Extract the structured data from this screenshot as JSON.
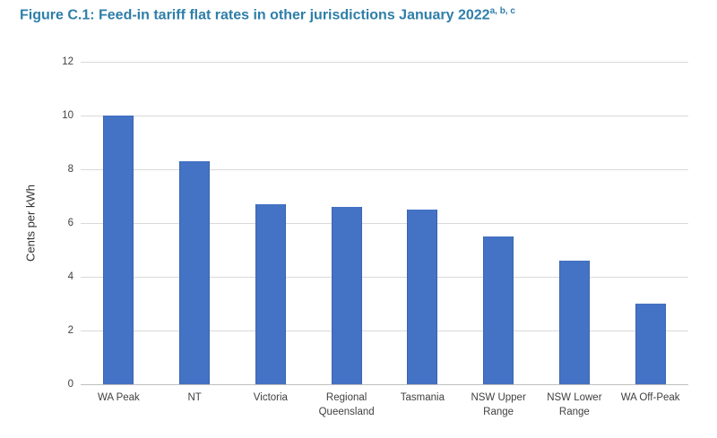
{
  "figure": {
    "title_text": "Figure C.1: Feed-in tariff flat rates in other jurisdictions January 2022",
    "title_superscript": "a, b, c"
  },
  "colors": {
    "title": "#2e7ea9",
    "bar_fill": "#4472c4",
    "bar_edge": "#3a64ae",
    "gridline": "#d9d9d9",
    "axis_line": "#bfbfbf",
    "tick_text": "#404040",
    "axis_title_text": "#333333",
    "background": "#ffffff"
  },
  "chart_data": {
    "type": "bar",
    "title": "Figure C.1: Feed-in tariff flat rates in other jurisdictions January 2022 (superscript a, b, c)",
    "categories": [
      "WA Peak",
      "NT",
      "Victoria",
      "Regional Queensland",
      "Tasmania",
      "NSW Upper Range",
      "NSW Lower Range",
      "WA Off-Peak"
    ],
    "values": [
      10.0,
      8.3,
      6.7,
      6.6,
      6.5,
      5.5,
      4.6,
      3.0
    ],
    "xlabel": "",
    "ylabel": "Cents per kWh",
    "ylim": [
      0,
      12
    ],
    "yticks": [
      0,
      2,
      4,
      6,
      8,
      10,
      12
    ],
    "grid": "horizontal",
    "legend": "none",
    "bar_orientation": "vertical"
  }
}
